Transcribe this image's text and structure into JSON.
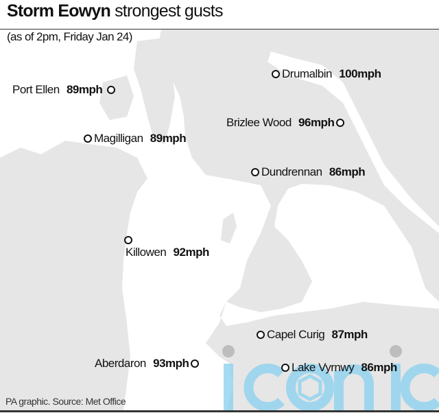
{
  "title": {
    "bold": "Storm Eowyn",
    "rest": "strongest gusts"
  },
  "subtitle": "(as of 2pm, Friday Jan 24)",
  "locations": [
    {
      "name": "Drumalbin",
      "speed": "100mph"
    },
    {
      "name": "Port Ellen",
      "speed": "89mph"
    },
    {
      "name": "Brizlee Wood",
      "speed": "96mph"
    },
    {
      "name": "Magilligan",
      "speed": "89mph"
    },
    {
      "name": "Dundrennan",
      "speed": "86mph"
    },
    {
      "name": "Killowen",
      "speed": "92mph"
    },
    {
      "name": "Capel Curig",
      "speed": "87mph"
    },
    {
      "name": "Aberdaron",
      "speed": "93mph"
    },
    {
      "name": "Lake Vyrnwy",
      "speed": "86mph"
    }
  ],
  "footer": "PA graphic. Source: Met Office",
  "watermark": "iconic",
  "colors": {
    "land": "#e6e6e6",
    "sea": "#ffffff",
    "marker": "#111111",
    "watermark": "#8fd3ef"
  }
}
